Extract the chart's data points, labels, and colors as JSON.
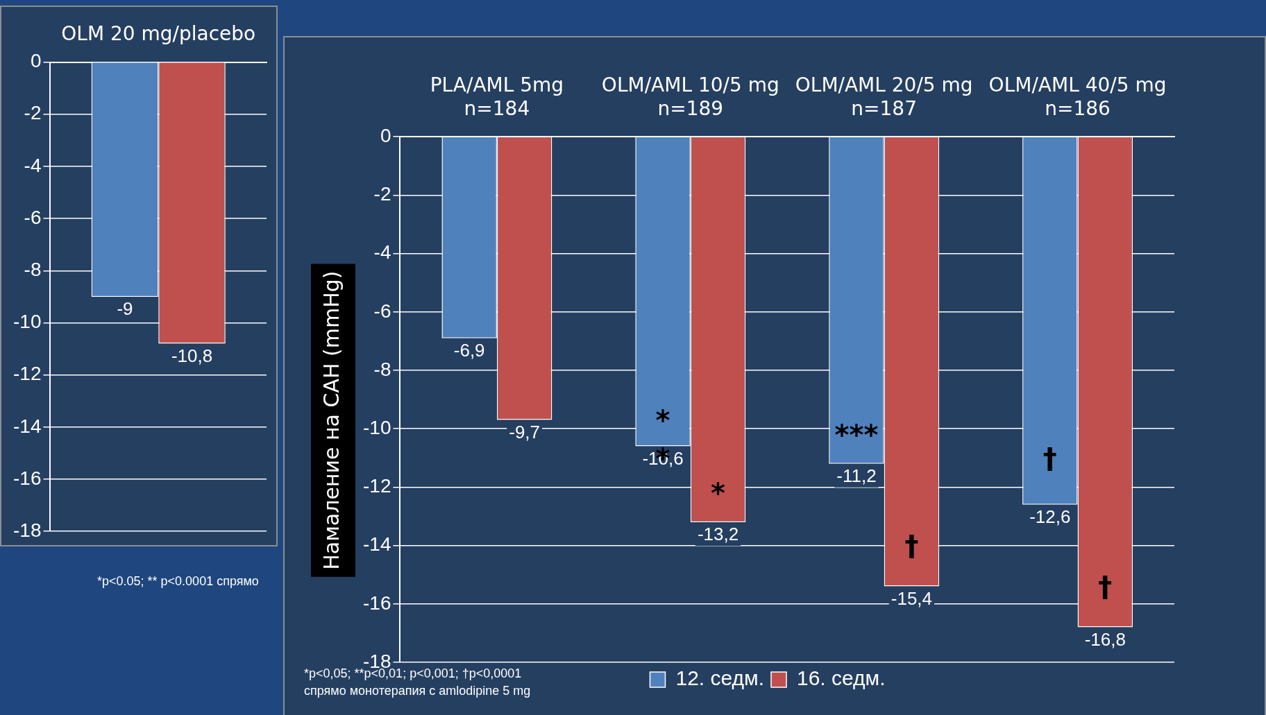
{
  "chart_data": [
    {
      "type": "bar",
      "categories": [
        "OLM 20 mg/placebo"
      ],
      "series": [
        {
          "color": "#4f81bd",
          "values": [
            -9
          ],
          "value_labels": [
            "-9"
          ]
        },
        {
          "color": "#c0504d",
          "values": [
            -10.8
          ],
          "value_labels": [
            "-10,8"
          ]
        }
      ],
      "ylim": [
        -18,
        0
      ],
      "yticks": [
        0,
        -2,
        -4,
        -6,
        -8,
        -10,
        -12,
        -14,
        -16,
        -18
      ],
      "grid": "y",
      "legend": false,
      "annotations": [
        "*p<0.05; ** p<0.0001 спрямо"
      ]
    },
    {
      "type": "bar",
      "categories": [
        "PLA/AML 5mg\nn=184",
        "OLM/AML 10/5 mg\nn=189",
        "OLM/AML 20/5 mg\nn=187",
        "OLM/AML 40/5 mg\nn=186"
      ],
      "ylabel": "Намаление на САН (mmHg)",
      "series": [
        {
          "name": "12. седм.",
          "color": "#4f81bd",
          "values": [
            -6.9,
            -10.6,
            -11.2,
            -12.6
          ],
          "value_labels": [
            "-6,9",
            "-10,6",
            "-11,2",
            "-12,6"
          ]
        },
        {
          "name": "16. седм.",
          "color": "#c0504d",
          "values": [
            -9.7,
            -13.2,
            -15.4,
            -16.8
          ],
          "value_labels": [
            "-9,7",
            "-13,2",
            "-15,4",
            "-16,8"
          ]
        }
      ],
      "ylim": [
        -18,
        0
      ],
      "yticks": [
        0,
        -2,
        -4,
        -6,
        -8,
        -10,
        -12,
        -14,
        -16,
        -18
      ],
      "grid": "y",
      "legend": "bottom",
      "annotations": [
        {
          "text": "*",
          "x": "OLM/AML 10/5 mg\nn=189",
          "y": -9.8
        },
        {
          "text": "*",
          "x": "OLM/AML 10/5 mg\nn=189",
          "y": -11.1
        },
        {
          "text": "*",
          "x": "OLM/AML 10/5 mg\nn=189",
          "y": -12.3
        },
        {
          "text": "***",
          "x": "OLM/AML 20/5 mg\nn=187",
          "y": -10.3
        },
        {
          "text": "†",
          "x": "OLM/AML 20/5 mg\nn=187",
          "y": -14.1
        },
        {
          "text": "†",
          "x": "OLM/AML 40/5 mg\nn=186",
          "y": -11.1
        },
        {
          "text": "†",
          "x": "OLM/AML 40/5 mg\nn=186",
          "y": -15.5
        },
        "*p<0,05; **p<0,01; p<0,001; †p<0,0001\nспрямо монотерапия с amlodipine 5 mg"
      ]
    }
  ]
}
